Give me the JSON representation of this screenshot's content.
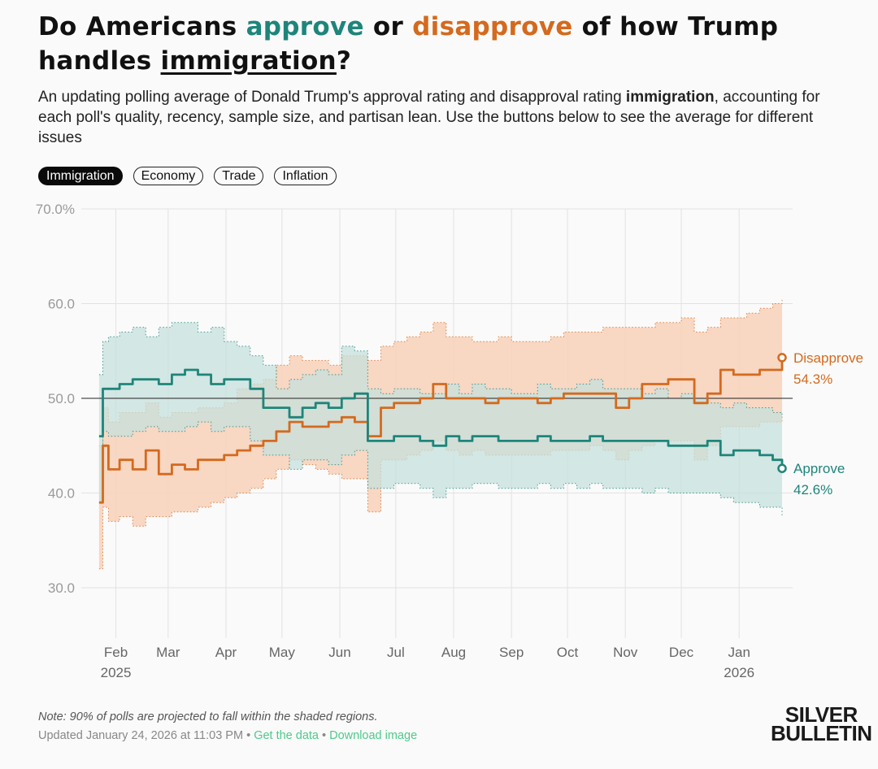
{
  "title": {
    "prefix": "Do Americans ",
    "approve_word": "approve",
    "middle": " or ",
    "disapprove_word": "disapprove",
    "suffix_line1": " of how Trump",
    "line2_prefix": "handles ",
    "issue_word": "immigration",
    "line2_suffix": "?"
  },
  "subtitle": {
    "part1": "An updating polling average of Donald Trump's approval rating and disapproval rating ",
    "bold": "immigration",
    "part2": ", accounting for each poll's quality, recency, sample size, and partisan lean. Use the buttons below to see the average for different issues"
  },
  "tabs": [
    {
      "label": "Immigration",
      "active": true
    },
    {
      "label": "Economy",
      "active": false
    },
    {
      "label": "Trade",
      "active": false
    },
    {
      "label": "Inflation",
      "active": false
    }
  ],
  "colors": {
    "approve": "#1e857a",
    "approve_band": "#c5e0dc",
    "disapprove": "#d46a1e",
    "disapprove_band": "#f7d3bd",
    "link": "#4fc98a"
  },
  "chart_data": {
    "type": "line",
    "title": "Do Americans approve or disapprove of how Trump handles immigration?",
    "xlabel": "",
    "ylabel": "",
    "ylim": [
      30,
      70
    ],
    "yticks": [
      70,
      60,
      50,
      40,
      30
    ],
    "ytick_labels": [
      "70.0%",
      "60.0",
      "50.0",
      "40.0",
      "30.0"
    ],
    "reference_line": 50,
    "grid": true,
    "xlim": [
      "2025-01-20",
      "2026-01-24"
    ],
    "xticks": [
      {
        "date": "2025-02-01",
        "label": "Feb",
        "sub": "2025"
      },
      {
        "date": "2025-03-01",
        "label": "Mar",
        "sub": ""
      },
      {
        "date": "2025-04-01",
        "label": "Apr",
        "sub": ""
      },
      {
        "date": "2025-05-01",
        "label": "May",
        "sub": ""
      },
      {
        "date": "2025-06-01",
        "label": "Jun",
        "sub": ""
      },
      {
        "date": "2025-07-01",
        "label": "Jul",
        "sub": ""
      },
      {
        "date": "2025-08-01",
        "label": "Aug",
        "sub": ""
      },
      {
        "date": "2025-09-01",
        "label": "Sep",
        "sub": ""
      },
      {
        "date": "2025-10-01",
        "label": "Oct",
        "sub": ""
      },
      {
        "date": "2025-11-01",
        "label": "Nov",
        "sub": ""
      },
      {
        "date": "2025-12-01",
        "label": "Dec",
        "sub": ""
      },
      {
        "date": "2026-01-01",
        "label": "Jan",
        "sub": "2026"
      }
    ],
    "x": [
      "2025-01-23",
      "2025-01-25",
      "2025-01-28",
      "2025-02-03",
      "2025-02-10",
      "2025-02-17",
      "2025-02-24",
      "2025-03-03",
      "2025-03-10",
      "2025-03-17",
      "2025-03-24",
      "2025-03-31",
      "2025-04-07",
      "2025-04-14",
      "2025-04-21",
      "2025-04-28",
      "2025-05-05",
      "2025-05-12",
      "2025-05-19",
      "2025-05-26",
      "2025-06-02",
      "2025-06-09",
      "2025-06-16",
      "2025-06-23",
      "2025-06-30",
      "2025-07-07",
      "2025-07-14",
      "2025-07-21",
      "2025-07-28",
      "2025-08-04",
      "2025-08-11",
      "2025-08-18",
      "2025-08-25",
      "2025-09-01",
      "2025-09-08",
      "2025-09-15",
      "2025-09-22",
      "2025-09-29",
      "2025-10-06",
      "2025-10-13",
      "2025-10-20",
      "2025-10-27",
      "2025-11-03",
      "2025-11-10",
      "2025-11-17",
      "2025-11-24",
      "2025-12-01",
      "2025-12-08",
      "2025-12-15",
      "2025-12-22",
      "2025-12-29",
      "2026-01-05",
      "2026-01-12",
      "2026-01-19",
      "2026-01-24"
    ],
    "series": [
      {
        "name": "Approve",
        "final_label": "42.6%",
        "values": [
          46.0,
          51.0,
          51.0,
          51.5,
          52.0,
          52.0,
          51.5,
          52.5,
          53.0,
          52.5,
          51.5,
          52.0,
          52.0,
          51.0,
          49.0,
          49.0,
          48.0,
          49.0,
          49.5,
          49.0,
          50.0,
          50.5,
          45.5,
          45.5,
          46.0,
          46.0,
          45.5,
          45.0,
          46.0,
          45.5,
          46.0,
          46.0,
          45.5,
          45.5,
          45.5,
          46.0,
          45.5,
          45.5,
          45.5,
          46.0,
          45.5,
          45.5,
          45.5,
          45.5,
          45.5,
          45.0,
          45.0,
          45.0,
          45.5,
          44.0,
          44.5,
          44.5,
          44.0,
          43.5,
          42.6
        ],
        "upper": [
          52.5,
          56.0,
          56.5,
          57.0,
          57.5,
          56.5,
          57.5,
          58.0,
          58.0,
          57.0,
          57.5,
          56.0,
          55.5,
          54.5,
          53.5,
          51.0,
          52.0,
          52.5,
          53.0,
          52.5,
          55.5,
          55.0,
          51.0,
          50.5,
          51.0,
          51.0,
          50.5,
          50.5,
          51.5,
          50.5,
          51.5,
          51.0,
          51.0,
          50.5,
          50.5,
          51.5,
          51.0,
          51.0,
          51.5,
          52.0,
          51.0,
          51.0,
          51.0,
          50.5,
          51.0,
          50.0,
          50.5,
          50.0,
          49.5,
          49.0,
          49.5,
          49.0,
          49.0,
          48.5,
          48.0
        ],
        "lower": [
          39.0,
          46.5,
          46.0,
          46.0,
          46.5,
          47.0,
          46.5,
          46.5,
          47.0,
          47.5,
          46.5,
          47.0,
          47.0,
          45.5,
          44.0,
          44.0,
          42.5,
          43.5,
          43.5,
          43.0,
          44.0,
          44.5,
          40.5,
          40.5,
          41.0,
          41.0,
          40.5,
          39.5,
          40.5,
          40.5,
          41.0,
          41.0,
          40.5,
          40.5,
          40.5,
          41.0,
          40.5,
          41.0,
          40.5,
          41.0,
          40.5,
          40.5,
          40.5,
          40.0,
          40.5,
          40.0,
          40.0,
          40.0,
          40.0,
          39.5,
          39.0,
          39.0,
          38.5,
          38.5,
          37.5
        ]
      },
      {
        "name": "Disapprove",
        "final_label": "54.3%",
        "values": [
          39.0,
          45.0,
          42.5,
          43.5,
          42.5,
          44.5,
          42.0,
          43.0,
          42.5,
          43.5,
          43.5,
          44.0,
          44.5,
          45.0,
          45.5,
          46.5,
          47.5,
          47.0,
          47.0,
          47.5,
          48.0,
          47.5,
          46.0,
          49.0,
          49.5,
          49.5,
          50.0,
          51.5,
          50.0,
          50.0,
          50.0,
          49.5,
          50.0,
          50.0,
          50.0,
          49.5,
          50.0,
          50.5,
          50.5,
          50.5,
          50.5,
          49.0,
          50.0,
          51.5,
          51.5,
          52.0,
          52.0,
          49.5,
          50.5,
          53.0,
          52.5,
          52.5,
          53.0,
          53.0,
          54.3
        ],
        "upper": [
          45.0,
          49.0,
          47.5,
          48.5,
          48.5,
          49.5,
          48.0,
          48.5,
          48.5,
          49.0,
          49.0,
          49.5,
          51.0,
          51.5,
          52.0,
          53.5,
          54.5,
          54.0,
          54.0,
          53.5,
          54.5,
          54.5,
          54.0,
          55.5,
          56.0,
          56.5,
          57.0,
          58.0,
          56.5,
          56.5,
          56.0,
          56.0,
          56.5,
          56.0,
          56.0,
          56.0,
          56.5,
          57.0,
          57.0,
          57.0,
          57.5,
          57.5,
          57.5,
          57.5,
          58.0,
          58.0,
          58.5,
          57.0,
          57.5,
          58.5,
          58.5,
          59.0,
          59.5,
          60.0,
          60.5
        ],
        "lower": [
          32.0,
          38.5,
          37.0,
          37.5,
          36.5,
          37.5,
          37.5,
          38.0,
          38.0,
          38.5,
          39.0,
          39.5,
          40.0,
          40.5,
          41.5,
          42.5,
          43.5,
          43.0,
          42.5,
          42.0,
          41.5,
          41.5,
          38.0,
          43.5,
          43.5,
          44.0,
          44.5,
          45.5,
          44.5,
          44.0,
          44.5,
          44.0,
          44.0,
          44.0,
          44.0,
          44.0,
          44.5,
          44.5,
          44.5,
          45.0,
          44.5,
          43.5,
          44.5,
          45.0,
          45.5,
          45.5,
          45.5,
          43.5,
          45.0,
          47.0,
          47.0,
          47.0,
          47.5,
          47.5,
          48.0
        ]
      }
    ],
    "annotation": "Note: 90% of polls are projected to fall within the shaded regions."
  },
  "footer": {
    "note": "Note: 90% of polls are projected to fall within the shaded regions.",
    "updated": "Updated January 24, 2026 at 11:03 PM",
    "separator": " • ",
    "get_data": "Get the data",
    "download_image": "Download image"
  },
  "logo": {
    "line1": "SILVER",
    "line2": "BULLETIN"
  }
}
